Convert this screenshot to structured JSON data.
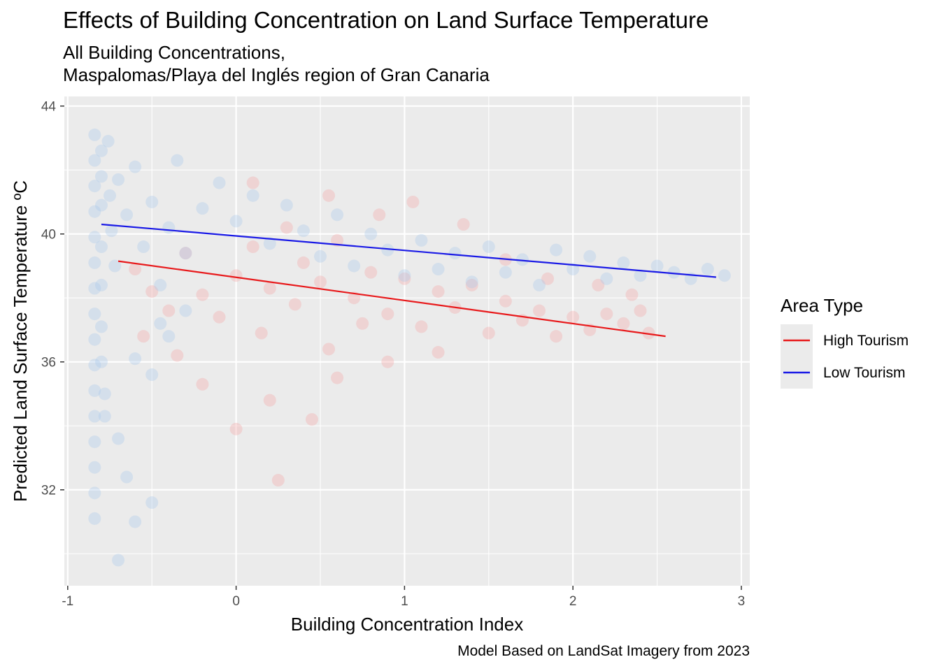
{
  "chart_data": {
    "type": "scatter",
    "title": "Effects of Building Concentration on Land Surface Temperature",
    "subtitle_lines": [
      "All Building Concentrations,",
      "Maspalomas/Playa del Inglés region of Gran Canaria"
    ],
    "caption": "Model Based on LandSat Imagery from 2023",
    "xlabel": "Building Concentration Index",
    "ylabel": "Predicted Land Surface Temperature ºC",
    "xlim": [
      -1.02,
      3.05
    ],
    "ylim": [
      29.0,
      44.3
    ],
    "x_ticks": [
      -1,
      0,
      1,
      2,
      3
    ],
    "x_tick_labels": [
      "-1",
      "0",
      "1",
      "2",
      "3"
    ],
    "y_ticks": [
      32,
      36,
      40,
      44
    ],
    "y_tick_labels": [
      "32",
      "36",
      "40",
      "44"
    ],
    "grid": true,
    "legend": {
      "title": "Area Type",
      "position": "right",
      "entries": [
        "High Tourism",
        "Low Tourism"
      ]
    },
    "series": [
      {
        "name": "High Tourism",
        "color": "#e8191b",
        "point_color": "#f4a6a6",
        "trend": {
          "x": [
            -0.7,
            2.55
          ],
          "y": [
            39.15,
            36.8
          ]
        },
        "points": [
          [
            -0.6,
            38.9
          ],
          [
            -0.5,
            38.2
          ],
          [
            -0.4,
            37.6
          ],
          [
            -0.3,
            39.4
          ],
          [
            -0.2,
            38.1
          ],
          [
            -0.1,
            37.4
          ],
          [
            0.0,
            38.7
          ],
          [
            0.1,
            39.6
          ],
          [
            0.15,
            36.9
          ],
          [
            0.2,
            38.3
          ],
          [
            0.3,
            40.2
          ],
          [
            0.35,
            37.8
          ],
          [
            0.4,
            39.1
          ],
          [
            0.5,
            38.5
          ],
          [
            0.55,
            36.4
          ],
          [
            0.6,
            39.8
          ],
          [
            0.7,
            38.0
          ],
          [
            0.75,
            37.2
          ],
          [
            0.8,
            38.8
          ],
          [
            0.9,
            37.5
          ],
          [
            1.0,
            38.6
          ],
          [
            1.1,
            37.1
          ],
          [
            1.2,
            38.2
          ],
          [
            1.3,
            37.7
          ],
          [
            1.4,
            38.4
          ],
          [
            1.5,
            36.9
          ],
          [
            1.6,
            37.9
          ],
          [
            1.7,
            37.3
          ],
          [
            1.8,
            37.6
          ],
          [
            1.9,
            36.8
          ],
          [
            2.0,
            37.4
          ],
          [
            2.1,
            37.0
          ],
          [
            2.2,
            37.5
          ],
          [
            2.3,
            37.2
          ],
          [
            2.4,
            37.6
          ],
          [
            2.45,
            36.9
          ],
          [
            0.2,
            34.8
          ],
          [
            0.0,
            33.9
          ],
          [
            0.45,
            34.2
          ],
          [
            -0.2,
            35.3
          ],
          [
            0.25,
            32.3
          ],
          [
            0.6,
            35.5
          ],
          [
            0.9,
            36.0
          ],
          [
            1.2,
            36.3
          ],
          [
            -0.35,
            36.2
          ],
          [
            0.1,
            41.6
          ],
          [
            0.55,
            41.2
          ],
          [
            0.85,
            40.6
          ],
          [
            1.05,
            41.0
          ],
          [
            1.35,
            40.3
          ],
          [
            1.6,
            39.2
          ],
          [
            1.85,
            38.6
          ],
          [
            2.15,
            38.4
          ],
          [
            2.35,
            38.1
          ],
          [
            -0.55,
            36.8
          ]
        ]
      },
      {
        "name": "Low Tourism",
        "color": "#1a1ae6",
        "point_color": "#a9c8ea",
        "trend": {
          "x": [
            -0.8,
            2.85
          ],
          "y": [
            40.3,
            38.65
          ]
        },
        "points": [
          [
            -0.84,
            43.1
          ],
          [
            -0.84,
            42.3
          ],
          [
            -0.84,
            41.5
          ],
          [
            -0.84,
            40.7
          ],
          [
            -0.84,
            39.9
          ],
          [
            -0.84,
            39.1
          ],
          [
            -0.84,
            38.3
          ],
          [
            -0.84,
            37.5
          ],
          [
            -0.84,
            36.7
          ],
          [
            -0.84,
            35.9
          ],
          [
            -0.84,
            35.1
          ],
          [
            -0.84,
            34.3
          ],
          [
            -0.84,
            33.5
          ],
          [
            -0.84,
            32.7
          ],
          [
            -0.84,
            31.9
          ],
          [
            -0.84,
            31.1
          ],
          [
            -0.8,
            42.6
          ],
          [
            -0.8,
            41.8
          ],
          [
            -0.8,
            40.9
          ],
          [
            -0.8,
            39.6
          ],
          [
            -0.8,
            38.4
          ],
          [
            -0.8,
            37.1
          ],
          [
            -0.8,
            36.0
          ],
          [
            -0.78,
            35.0
          ],
          [
            -0.78,
            34.3
          ],
          [
            -0.76,
            42.9
          ],
          [
            -0.75,
            41.2
          ],
          [
            -0.74,
            40.1
          ],
          [
            -0.72,
            39.0
          ],
          [
            -0.7,
            41.7
          ],
          [
            -0.65,
            40.6
          ],
          [
            -0.6,
            42.1
          ],
          [
            -0.55,
            39.6
          ],
          [
            -0.5,
            41.0
          ],
          [
            -0.45,
            38.4
          ],
          [
            -0.4,
            40.2
          ],
          [
            -0.35,
            42.3
          ],
          [
            -0.3,
            39.4
          ],
          [
            -0.2,
            40.8
          ],
          [
            -0.1,
            41.6
          ],
          [
            0.0,
            40.4
          ],
          [
            0.1,
            41.2
          ],
          [
            0.2,
            39.7
          ],
          [
            0.3,
            40.9
          ],
          [
            0.4,
            40.1
          ],
          [
            0.5,
            39.3
          ],
          [
            0.6,
            40.6
          ],
          [
            0.7,
            39.0
          ],
          [
            0.8,
            40.0
          ],
          [
            0.9,
            39.5
          ],
          [
            1.0,
            38.7
          ],
          [
            1.1,
            39.8
          ],
          [
            1.2,
            38.9
          ],
          [
            1.3,
            39.4
          ],
          [
            1.4,
            38.5
          ],
          [
            1.5,
            39.6
          ],
          [
            1.6,
            38.8
          ],
          [
            1.7,
            39.2
          ],
          [
            1.8,
            38.4
          ],
          [
            1.9,
            39.5
          ],
          [
            2.0,
            38.9
          ],
          [
            2.1,
            39.3
          ],
          [
            2.2,
            38.6
          ],
          [
            2.3,
            39.1
          ],
          [
            2.4,
            38.7
          ],
          [
            2.5,
            39.0
          ],
          [
            2.6,
            38.8
          ],
          [
            2.7,
            38.6
          ],
          [
            2.8,
            38.9
          ],
          [
            2.9,
            38.7
          ],
          [
            -0.6,
            36.1
          ],
          [
            -0.5,
            35.6
          ],
          [
            -0.4,
            36.8
          ],
          [
            -0.7,
            33.6
          ],
          [
            -0.65,
            32.4
          ],
          [
            -0.6,
            31.0
          ],
          [
            -0.5,
            31.6
          ],
          [
            -0.7,
            29.8
          ],
          [
            -0.3,
            37.6
          ],
          [
            -0.45,
            37.2
          ]
        ]
      }
    ]
  }
}
